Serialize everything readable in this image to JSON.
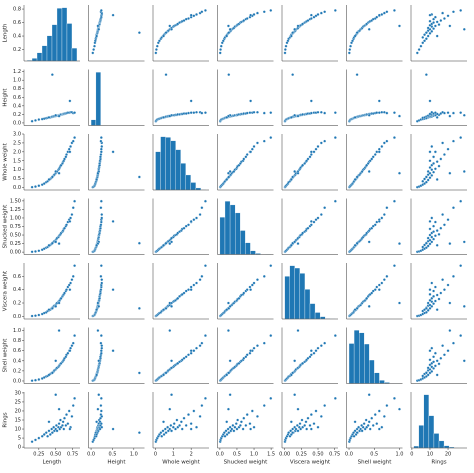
{
  "chart_data": {
    "type": "pairplot",
    "color": "#1f77b4",
    "variables": [
      {
        "name": "Length",
        "lim": [
          0.03,
          0.86
        ],
        "xticks": [
          0.25,
          {
            "value": 0.5,
            "label": "0.50"
          },
          0.75
        ],
        "yticks": [
          0.2,
          0.4,
          0.6,
          0.8
        ],
        "bins": [
          0.075,
          0.149,
          0.223,
          0.297,
          0.371,
          0.445,
          0.519,
          0.593,
          0.667,
          0.741,
          0.815
        ],
        "counts": [
          12,
          45,
          140,
          260,
          430,
          620,
          900,
          910,
          640,
          220
        ]
      },
      {
        "name": "Height",
        "lim": [
          -0.06,
          1.25
        ],
        "xticks": [
          {
            "value": 0,
            "label": "0.0"
          },
          0.5,
          {
            "value": 1,
            "label": "1.0"
          }
        ],
        "yticks": [
          {
            "value": 0,
            "label": "0.0"
          },
          0.2,
          0.4,
          0.6,
          0.8,
          {
            "value": 1,
            "label": "1.0"
          },
          1.2
        ],
        "bins": [
          0,
          0.113,
          0.226,
          0.339,
          0.452,
          0.565,
          0.678,
          0.791,
          0.904,
          1.017,
          1.13
        ],
        "counts": [
          400,
          3760,
          15,
          0,
          1,
          0,
          0,
          0,
          0,
          1
        ]
      },
      {
        "name": "Whole weight",
        "lim": [
          -0.14,
          3.0
        ],
        "xticks": [
          0,
          1,
          2
        ],
        "yticks": [
          {
            "value": 0,
            "label": "0.0"
          },
          0.5,
          {
            "value": 1,
            "label": "1.0"
          },
          1.5,
          {
            "value": 2,
            "label": "2.0"
          },
          2.5,
          {
            "value": 3,
            "label": "3.0"
          }
        ],
        "bins": [
          0,
          0.283,
          0.566,
          0.849,
          1.132,
          1.415,
          1.698,
          1.981,
          2.264,
          2.547,
          2.83
        ],
        "counts": [
          560,
          780,
          770,
          720,
          590,
          390,
          220,
          110,
          30,
          6
        ]
      },
      {
        "name": "Shucked weight",
        "lim": [
          -0.07,
          1.57
        ],
        "xticks": [
          {
            "value": 0,
            "label": "0.0"
          },
          0.5,
          {
            "value": 1,
            "label": "1.0"
          },
          1.5
        ],
        "yticks": [
          {
            "value": 0,
            "label": "0.00"
          },
          0.25,
          {
            "value": 0.5,
            "label": "0.50"
          },
          0.75,
          {
            "value": 1,
            "label": "1.00"
          },
          1.25,
          {
            "value": 1.5,
            "label": "1.50"
          }
        ],
        "bins": [
          0,
          0.149,
          0.298,
          0.447,
          0.596,
          0.745,
          0.894,
          1.043,
          1.192,
          1.341,
          1.49
        ],
        "counts": [
          700,
          1000,
          930,
          780,
          450,
          220,
          70,
          20,
          5,
          2
        ]
      },
      {
        "name": "Viscera weight",
        "lim": [
          -0.04,
          0.8
        ],
        "xticks": [
          {
            "value": 0,
            "label": "0.00"
          },
          0.25,
          {
            "value": 0.5,
            "label": "0.50"
          },
          0.75
        ],
        "yticks": [
          {
            "value": 0,
            "label": "0.0"
          },
          0.2,
          0.4,
          0.6
        ],
        "bins": [
          0,
          0.076,
          0.152,
          0.228,
          0.304,
          0.38,
          0.456,
          0.532,
          0.608,
          0.684,
          0.76
        ],
        "counts": [
          720,
          900,
          860,
          770,
          500,
          260,
          110,
          40,
          8,
          2
        ]
      },
      {
        "name": "Shell weight",
        "lim": [
          -0.05,
          1.06
        ],
        "xticks": [
          {
            "value": 0,
            "label": "0.0"
          },
          0.5,
          {
            "value": 1,
            "label": "1.0"
          }
        ],
        "yticks": [
          {
            "value": 0,
            "label": "0.0"
          },
          0.2,
          0.4,
          0.6,
          0.8,
          {
            "value": 1,
            "label": "1.0"
          }
        ],
        "bins": [
          0,
          0.1005,
          0.201,
          0.3015,
          0.402,
          0.5025,
          0.603,
          0.7035,
          0.804,
          0.9045,
          1.005
        ],
        "counts": [
          750,
          1000,
          950,
          740,
          440,
          200,
          60,
          20,
          5,
          3
        ]
      },
      {
        "name": "Rings",
        "lim": [
          -0.5,
          30.5
        ],
        "xticks": [
          0,
          10,
          20
        ],
        "yticks": [
          0,
          5,
          10,
          15,
          20,
          25,
          30
        ],
        "bins": [
          1,
          3.8,
          6.6,
          9.4,
          12.2,
          15,
          17.8,
          20.6,
          23.4,
          26.2,
          29
        ],
        "counts": [
          60,
          700,
          1650,
          1000,
          450,
          220,
          70,
          30,
          10,
          5
        ]
      }
    ],
    "samples": [
      [
        0.15,
        0.04,
        0.02,
        0.01,
        0.005,
        0.006,
        3
      ],
      [
        0.2,
        0.06,
        0.05,
        0.02,
        0.01,
        0.015,
        4
      ],
      [
        0.25,
        0.08,
        0.1,
        0.04,
        0.02,
        0.03,
        5
      ],
      [
        0.3,
        0.09,
        0.16,
        0.07,
        0.035,
        0.05,
        6
      ],
      [
        0.33,
        0.1,
        0.22,
        0.1,
        0.05,
        0.07,
        7
      ],
      [
        0.36,
        0.11,
        0.3,
        0.13,
        0.06,
        0.09,
        8
      ],
      [
        0.38,
        0.12,
        0.35,
        0.15,
        0.08,
        0.1,
        6
      ],
      [
        0.4,
        0.13,
        0.42,
        0.18,
        0.09,
        0.12,
        9
      ],
      [
        0.42,
        0.13,
        0.48,
        0.21,
        0.1,
        0.14,
        7
      ],
      [
        0.44,
        0.14,
        0.55,
        0.24,
        0.12,
        0.16,
        10
      ],
      [
        0.45,
        0.15,
        0.6,
        0.27,
        0.13,
        0.17,
        8
      ],
      [
        0.47,
        0.15,
        0.68,
        0.3,
        0.15,
        0.19,
        11
      ],
      [
        0.48,
        0.16,
        0.72,
        0.32,
        0.16,
        0.21,
        9
      ],
      [
        0.5,
        0.16,
        0.8,
        0.35,
        0.17,
        0.23,
        10
      ],
      [
        0.51,
        0.17,
        0.86,
        0.38,
        0.19,
        0.25,
        12
      ],
      [
        0.52,
        0.17,
        0.9,
        0.41,
        0.2,
        0.26,
        9
      ],
      [
        0.54,
        0.18,
        1.0,
        0.44,
        0.22,
        0.28,
        11
      ],
      [
        0.55,
        0.18,
        1.05,
        0.48,
        0.23,
        0.3,
        13
      ],
      [
        0.56,
        0.19,
        1.12,
        0.5,
        0.24,
        0.32,
        10
      ],
      [
        0.57,
        0.19,
        1.2,
        0.52,
        0.26,
        0.34,
        15
      ],
      [
        0.58,
        0.2,
        1.25,
        0.56,
        0.27,
        0.35,
        11
      ],
      [
        0.6,
        0.2,
        1.35,
        0.6,
        0.3,
        0.38,
        12
      ],
      [
        0.61,
        0.21,
        1.45,
        0.63,
        0.32,
        0.4,
        14
      ],
      [
        0.62,
        0.21,
        1.5,
        0.68,
        0.33,
        0.42,
        10
      ],
      [
        0.63,
        0.22,
        1.6,
        0.7,
        0.35,
        0.45,
        16
      ],
      [
        0.65,
        0.22,
        1.72,
        0.76,
        0.38,
        0.48,
        12
      ],
      [
        0.66,
        0.23,
        1.85,
        0.8,
        0.4,
        0.52,
        18
      ],
      [
        0.68,
        0.24,
        2.0,
        0.88,
        0.44,
        0.55,
        13
      ],
      [
        0.7,
        0.24,
        2.15,
        0.95,
        0.47,
        0.6,
        20
      ],
      [
        0.72,
        0.25,
        2.3,
        1.0,
        0.5,
        0.65,
        11
      ],
      [
        0.74,
        0.25,
        2.5,
        1.1,
        0.55,
        0.7,
        17
      ],
      [
        0.76,
        0.23,
        2.6,
        1.3,
        0.6,
        0.75,
        23
      ],
      [
        0.78,
        0.24,
        2.8,
        1.49,
        0.76,
        0.9,
        27
      ],
      [
        0.5,
        0.18,
        0.9,
        0.3,
        0.15,
        0.4,
        29
      ],
      [
        0.45,
        1.13,
        0.59,
        0.26,
        0.12,
        0.16,
        8
      ],
      [
        0.71,
        0.515,
        2.0,
        0.9,
        0.4,
        0.6,
        10
      ],
      [
        0.55,
        0.16,
        0.8,
        0.25,
        0.2,
        1.0,
        21
      ],
      [
        0.4,
        0.13,
        0.45,
        0.2,
        0.1,
        0.12,
        14
      ]
    ]
  }
}
